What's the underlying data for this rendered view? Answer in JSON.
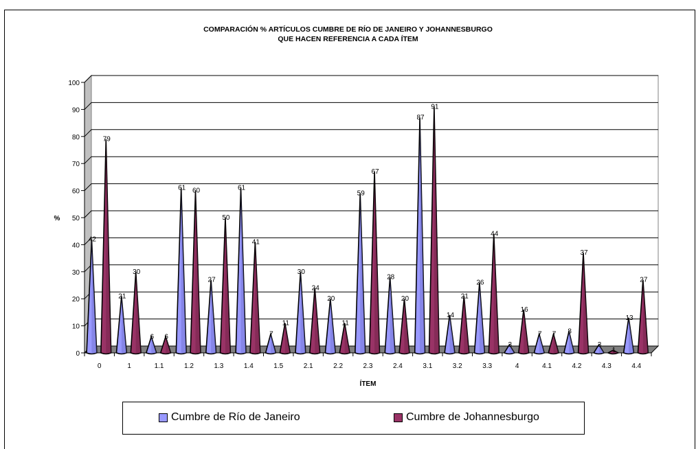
{
  "chart_data": {
    "type": "bar",
    "title_line1": "COMPARACIÓN % ARTÍCULOS CUMBRE DE RÍO DE JANEIRO Y JOHANNESBURGO",
    "title_line2": "QUE HACEN REFERENCIA A CADA ÍTEM",
    "xlabel": "ÍTEM",
    "ylabel": "%",
    "ylim": [
      0,
      100
    ],
    "yticks": [
      0,
      10,
      20,
      30,
      40,
      50,
      60,
      70,
      80,
      90,
      100
    ],
    "grid": true,
    "legend_position": "bottom",
    "categories": [
      "0",
      "1",
      "1.1",
      "1.2",
      "1.3",
      "1.4",
      "1.5",
      "2.1",
      "2.2",
      "2.3",
      "2.4",
      "3.1",
      "3.2",
      "3.3",
      "4",
      "4.1",
      "4.2",
      "4.3",
      "4.4"
    ],
    "series": [
      {
        "name": "Cumbre de Río de Janeiro",
        "color": "#9999ff",
        "values": [
          42,
          21,
          6,
          61,
          27,
          61,
          7,
          30,
          20,
          59,
          28,
          87,
          14,
          26,
          3,
          7,
          8,
          3,
          13
        ]
      },
      {
        "name": "Cumbre de Johannesburgo",
        "color": "#993366",
        "values": [
          79,
          30,
          6,
          60,
          50,
          41,
          11,
          24,
          11,
          67,
          20,
          91,
          21,
          44,
          16,
          7,
          37,
          1,
          27
        ]
      }
    ]
  }
}
